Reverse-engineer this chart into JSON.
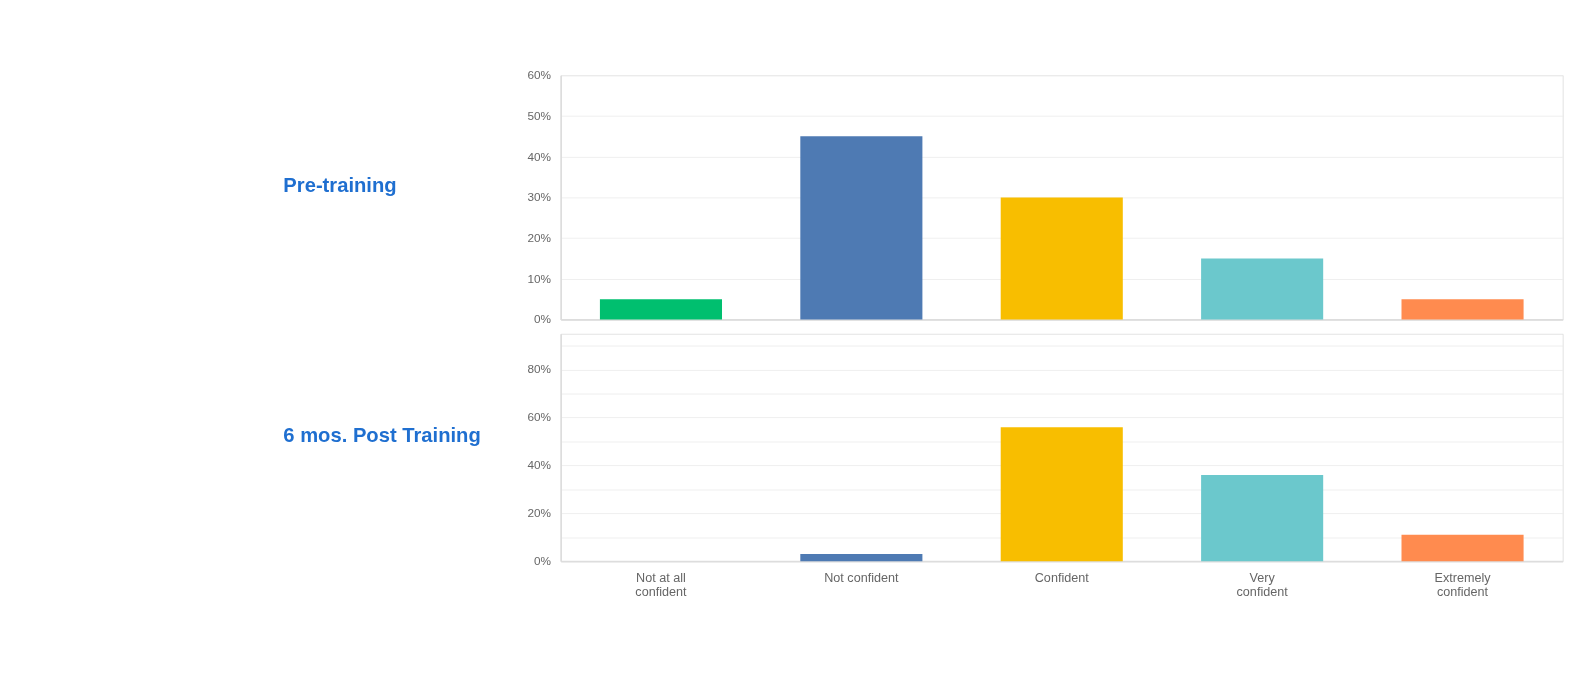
{
  "chart_data": [
    {
      "type": "bar",
      "ylabel": "Pre-training",
      "categories": [
        null,
        null,
        null,
        null,
        null
      ],
      "values": [
        5,
        45,
        30,
        15,
        5
      ],
      "colors": [
        "#00bf6f",
        "#4e7ab3",
        "#f8be00",
        "#6bc8cc",
        "#ff8b4f"
      ],
      "ylim": [
        0,
        60
      ],
      "yticks": [
        {
          "value": 0,
          "label": "0%"
        },
        {
          "value": 10,
          "label": "10%"
        },
        {
          "value": 20,
          "label": "20%"
        },
        {
          "value": 30,
          "label": "30%"
        },
        {
          "value": 40,
          "label": "40%"
        },
        {
          "value": 50,
          "label": "50%"
        },
        {
          "value": 60,
          "label": "60%"
        }
      ],
      "grid": "y",
      "tick_labels": "y"
    },
    {
      "type": "bar",
      "ylabel": "6 mos. Post Training",
      "categories": [
        "Not at all confident",
        "Not confident",
        "Confident",
        "Very confident",
        "Extremely confident"
      ],
      "values": [
        0,
        3,
        56,
        36,
        11
      ],
      "colors": [
        "#00bf6f",
        "#4e7ab3",
        "#f8be00",
        "#6bc8cc",
        "#ff8b4f"
      ],
      "ylim": [
        0,
        95
      ],
      "yticks": [
        {
          "value": 0,
          "label": "0%"
        },
        {
          "value": 10,
          "label": null
        },
        {
          "value": 20,
          "label": "20%"
        },
        {
          "value": 30,
          "label": null
        },
        {
          "value": 40,
          "label": "40%"
        },
        {
          "value": 50,
          "label": null
        },
        {
          "value": 60,
          "label": "60%"
        },
        {
          "value": 70,
          "label": null
        },
        {
          "value": 80,
          "label": "80%"
        },
        {
          "value": 90,
          "label": null
        }
      ],
      "grid": "y"
    }
  ]
}
